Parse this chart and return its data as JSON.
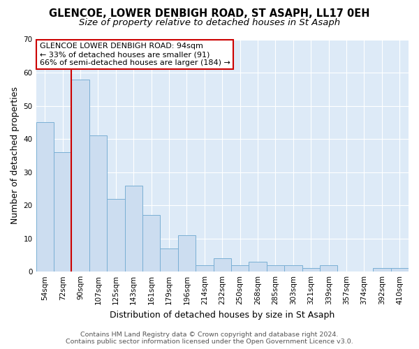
{
  "title": "GLENCOE, LOWER DENBIGH ROAD, ST ASAPH, LL17 0EH",
  "subtitle": "Size of property relative to detached houses in St Asaph",
  "xlabel": "Distribution of detached houses by size in St Asaph",
  "ylabel": "Number of detached properties",
  "bar_labels": [
    "54sqm",
    "72sqm",
    "90sqm",
    "107sqm",
    "125sqm",
    "143sqm",
    "161sqm",
    "179sqm",
    "196sqm",
    "214sqm",
    "232sqm",
    "250sqm",
    "268sqm",
    "285sqm",
    "303sqm",
    "321sqm",
    "339sqm",
    "357sqm",
    "374sqm",
    "392sqm",
    "410sqm"
  ],
  "bar_values": [
    45,
    36,
    58,
    41,
    22,
    26,
    17,
    7,
    11,
    2,
    4,
    2,
    3,
    2,
    2,
    1,
    2,
    0,
    0,
    1,
    1
  ],
  "bar_color": "#ccddf0",
  "bar_edge_color": "#7aafd4",
  "red_line_index": 2,
  "red_line_color": "#cc0000",
  "annotation_text": "GLENCOE LOWER DENBIGH ROAD: 94sqm\n← 33% of detached houses are smaller (91)\n66% of semi-detached houses are larger (184) →",
  "annotation_box_color": "#ffffff",
  "annotation_box_edge": "#cc0000",
  "ylim": [
    0,
    70
  ],
  "yticks": [
    0,
    10,
    20,
    30,
    40,
    50,
    60,
    70
  ],
  "footer_line1": "Contains HM Land Registry data © Crown copyright and database right 2024.",
  "footer_line2": "Contains public sector information licensed under the Open Government Licence v3.0.",
  "background_color": "#ddeaf7",
  "plot_bg_color": "#ddeaf7",
  "grid_color": "#ffffff",
  "title_fontsize": 10.5,
  "subtitle_fontsize": 9.5,
  "label_fontsize": 9,
  "tick_fontsize": 7.5,
  "footer_fontsize": 6.8,
  "annotation_fontsize": 8
}
